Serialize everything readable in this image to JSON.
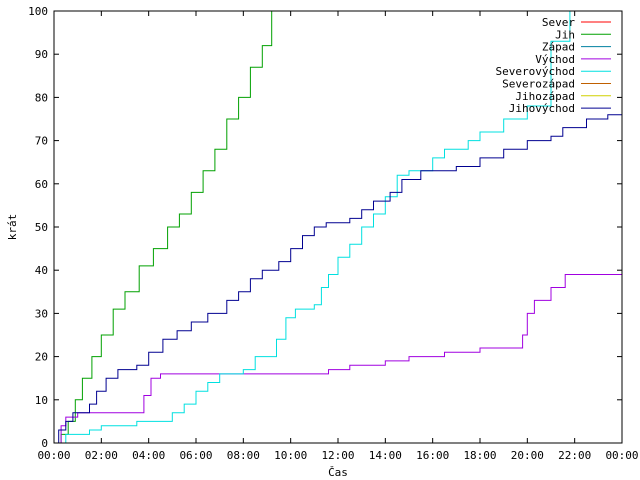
{
  "chart_data": {
    "type": "line",
    "xlabel": "Čas",
    "ylabel": "krát",
    "xlim": [
      0,
      24
    ],
    "ylim": [
      0,
      100
    ],
    "x_ticks": [
      "00:00",
      "02:00",
      "04:00",
      "06:00",
      "08:00",
      "10:00",
      "12:00",
      "14:00",
      "16:00",
      "18:00",
      "20:00",
      "22:00",
      "00:00"
    ],
    "y_ticks": [
      "0",
      "10",
      "20",
      "30",
      "40",
      "50",
      "60",
      "70",
      "80",
      "90",
      "100"
    ],
    "grid": false,
    "legend_position": "top-right",
    "series": [
      {
        "name": "Sever",
        "color": "#ff0000",
        "points": []
      },
      {
        "name": "Jih",
        "color": "#00a000",
        "points": [
          [
            0,
            0
          ],
          [
            0.3,
            2
          ],
          [
            0.6,
            5
          ],
          [
            0.9,
            10
          ],
          [
            1.2,
            15
          ],
          [
            1.6,
            20
          ],
          [
            2,
            25
          ],
          [
            2.5,
            31
          ],
          [
            3,
            35
          ],
          [
            3.6,
            41
          ],
          [
            4.2,
            45
          ],
          [
            4.8,
            50
          ],
          [
            5.3,
            53
          ],
          [
            5.8,
            58
          ],
          [
            6.3,
            63
          ],
          [
            6.8,
            68
          ],
          [
            7.3,
            75
          ],
          [
            7.8,
            80
          ],
          [
            8.3,
            87
          ],
          [
            8.8,
            92
          ],
          [
            9.2,
            100
          ]
        ]
      },
      {
        "name": "Západ",
        "color": "#0080a0",
        "points": []
      },
      {
        "name": "Východ",
        "color": "#a000e0",
        "points": [
          [
            0,
            0
          ],
          [
            0.3,
            4
          ],
          [
            0.5,
            6
          ],
          [
            1,
            7
          ],
          [
            2,
            7
          ],
          [
            3.5,
            7
          ],
          [
            3.8,
            11
          ],
          [
            4.1,
            15
          ],
          [
            4.5,
            16
          ],
          [
            6,
            16
          ],
          [
            8,
            16
          ],
          [
            10,
            16
          ],
          [
            11.4,
            16
          ],
          [
            11.6,
            17
          ],
          [
            12.5,
            18
          ],
          [
            14,
            19
          ],
          [
            15,
            20
          ],
          [
            16.5,
            21
          ],
          [
            18,
            22
          ],
          [
            19.5,
            22
          ],
          [
            19.8,
            25
          ],
          [
            20,
            30
          ],
          [
            20.3,
            33
          ],
          [
            21,
            36
          ],
          [
            21.6,
            39
          ],
          [
            24,
            39
          ]
        ]
      },
      {
        "name": "Severovýchod",
        "color": "#00e0e0",
        "points": [
          [
            0,
            0
          ],
          [
            0.5,
            2
          ],
          [
            1.5,
            3
          ],
          [
            2,
            4
          ],
          [
            3,
            4
          ],
          [
            3.5,
            5
          ],
          [
            4.5,
            5
          ],
          [
            5,
            7
          ],
          [
            5.5,
            9
          ],
          [
            6,
            12
          ],
          [
            6.5,
            14
          ],
          [
            7,
            16
          ],
          [
            8,
            17
          ],
          [
            8.5,
            20
          ],
          [
            9.4,
            24
          ],
          [
            9.8,
            29
          ],
          [
            10.2,
            31
          ],
          [
            11,
            32
          ],
          [
            11.3,
            36
          ],
          [
            11.6,
            39
          ],
          [
            12,
            43
          ],
          [
            12.5,
            46
          ],
          [
            13,
            50
          ],
          [
            13.5,
            53
          ],
          [
            14,
            57
          ],
          [
            14.5,
            62
          ],
          [
            15,
            63
          ],
          [
            16,
            66
          ],
          [
            16.5,
            68
          ],
          [
            17.5,
            70
          ],
          [
            18,
            72
          ],
          [
            19,
            75
          ],
          [
            20,
            78
          ],
          [
            21,
            93
          ],
          [
            21.8,
            100
          ]
        ]
      },
      {
        "name": "Severozápad",
        "color": "#c06000",
        "points": []
      },
      {
        "name": "Jihozápad",
        "color": "#d0d000",
        "points": []
      },
      {
        "name": "Jihovýchod",
        "color": "#000090",
        "points": [
          [
            0,
            0
          ],
          [
            0.2,
            3
          ],
          [
            0.5,
            5
          ],
          [
            0.8,
            7
          ],
          [
            1.5,
            9
          ],
          [
            1.8,
            12
          ],
          [
            2.2,
            15
          ],
          [
            2.7,
            17
          ],
          [
            3.5,
            18
          ],
          [
            4,
            21
          ],
          [
            4.6,
            24
          ],
          [
            5.2,
            26
          ],
          [
            5.8,
            28
          ],
          [
            6.5,
            30
          ],
          [
            7.3,
            33
          ],
          [
            7.8,
            35
          ],
          [
            8.3,
            38
          ],
          [
            8.8,
            40
          ],
          [
            9.5,
            42
          ],
          [
            10,
            45
          ],
          [
            10.5,
            48
          ],
          [
            11,
            50
          ],
          [
            11.5,
            51
          ],
          [
            12.5,
            52
          ],
          [
            13,
            54
          ],
          [
            13.5,
            56
          ],
          [
            14.2,
            58
          ],
          [
            14.7,
            61
          ],
          [
            15.5,
            63
          ],
          [
            17,
            64
          ],
          [
            18,
            66
          ],
          [
            19,
            68
          ],
          [
            20,
            70
          ],
          [
            21,
            71
          ],
          [
            21.5,
            73
          ],
          [
            22.5,
            75
          ],
          [
            23.4,
            76
          ],
          [
            24,
            76
          ]
        ]
      }
    ]
  }
}
